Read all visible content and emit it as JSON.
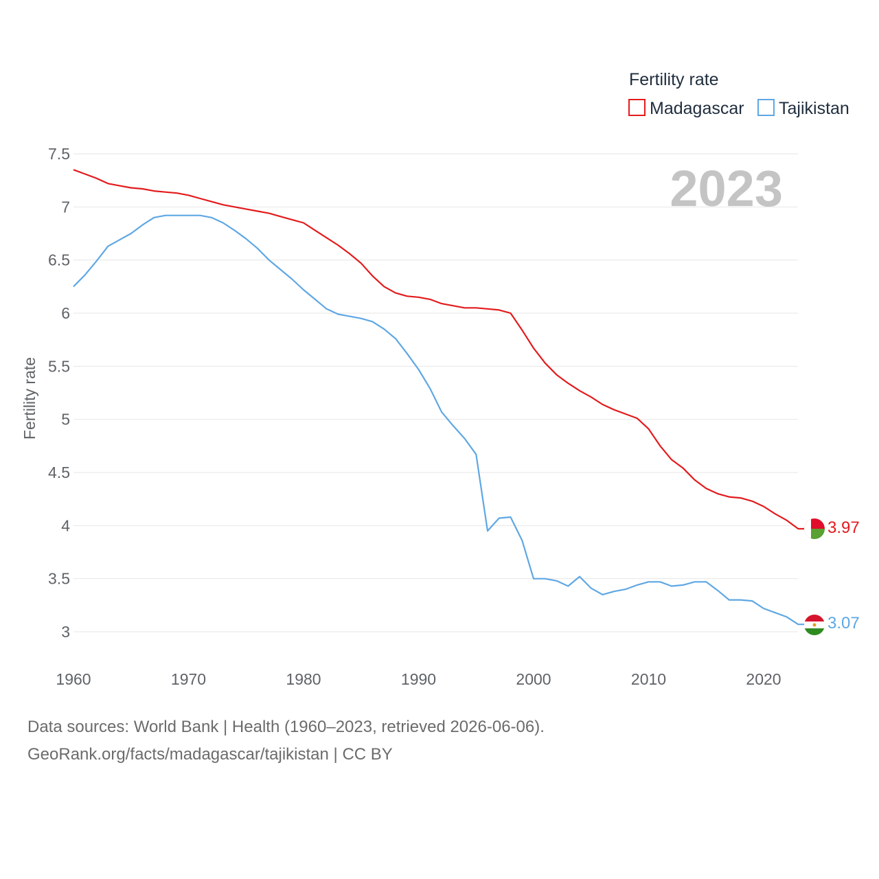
{
  "chart_data": {
    "type": "line",
    "title": "Fertility rate",
    "ylabel": "Fertility rate",
    "xlabel": "",
    "year_label": "2023",
    "xlim": [
      1960,
      2023
    ],
    "ylim": [
      2.8,
      7.5
    ],
    "x_ticks": [
      "1960",
      "1970",
      "1980",
      "1990",
      "2000",
      "2010",
      "2020"
    ],
    "y_ticks": [
      "3",
      "3.5",
      "4",
      "4.5",
      "5",
      "5.5",
      "6",
      "6.5",
      "7",
      "7.5"
    ],
    "x": [
      1960,
      1961,
      1962,
      1963,
      1964,
      1965,
      1966,
      1967,
      1968,
      1969,
      1970,
      1971,
      1972,
      1973,
      1974,
      1975,
      1976,
      1977,
      1978,
      1979,
      1980,
      1981,
      1982,
      1983,
      1984,
      1985,
      1986,
      1987,
      1988,
      1989,
      1990,
      1991,
      1992,
      1993,
      1994,
      1995,
      1996,
      1997,
      1998,
      1999,
      2000,
      2001,
      2002,
      2003,
      2004,
      2005,
      2006,
      2007,
      2008,
      2009,
      2010,
      2011,
      2012,
      2013,
      2014,
      2015,
      2016,
      2017,
      2018,
      2019,
      2020,
      2021,
      2022,
      2023
    ],
    "series": [
      {
        "name": "Madagascar",
        "color": "#e31a1c",
        "end_label": "3.97",
        "values": [
          7.35,
          7.31,
          7.27,
          7.22,
          7.2,
          7.18,
          7.17,
          7.15,
          7.14,
          7.13,
          7.11,
          7.08,
          7.05,
          7.02,
          7.0,
          6.98,
          6.96,
          6.94,
          6.91,
          6.88,
          6.85,
          6.78,
          6.71,
          6.64,
          6.56,
          6.47,
          6.35,
          6.25,
          6.19,
          6.16,
          6.15,
          6.13,
          6.09,
          6.07,
          6.05,
          6.05,
          6.04,
          6.03,
          6.0,
          5.84,
          5.67,
          5.53,
          5.42,
          5.34,
          5.27,
          5.21,
          5.14,
          5.09,
          5.05,
          5.01,
          4.91,
          4.75,
          4.62,
          4.54,
          4.43,
          4.35,
          4.3,
          4.27,
          4.26,
          4.23,
          4.18,
          4.11,
          4.05,
          3.97
        ]
      },
      {
        "name": "Tajikistan",
        "color": "#5ea7e4",
        "end_label": "3.07",
        "values": [
          6.25,
          6.36,
          6.49,
          6.63,
          6.69,
          6.75,
          6.83,
          6.9,
          6.92,
          6.92,
          6.92,
          6.92,
          6.9,
          6.85,
          6.78,
          6.7,
          6.61,
          6.5,
          6.41,
          6.32,
          6.22,
          6.13,
          6.04,
          5.99,
          5.97,
          5.95,
          5.92,
          5.85,
          5.76,
          5.62,
          5.47,
          5.29,
          5.07,
          4.94,
          4.82,
          4.67,
          3.95,
          4.07,
          4.08,
          3.86,
          3.5,
          3.5,
          3.48,
          3.43,
          3.52,
          3.41,
          3.35,
          3.38,
          3.4,
          3.44,
          3.47,
          3.47,
          3.43,
          3.44,
          3.47,
          3.47,
          3.39,
          3.3,
          3.3,
          3.29,
          3.22,
          3.18,
          3.14,
          3.07
        ]
      }
    ]
  },
  "footer": {
    "sources": "Data sources: World Bank | Health (1960–2023, retrieved 2026-06-06).",
    "attribution": "GeoRank.org/facts/madagascar/tajikistan | CC BY"
  },
  "colors": {
    "madagascar": "#e31a1c",
    "tajikistan": "#5ea7e4",
    "grid": "#e6e6e6"
  }
}
